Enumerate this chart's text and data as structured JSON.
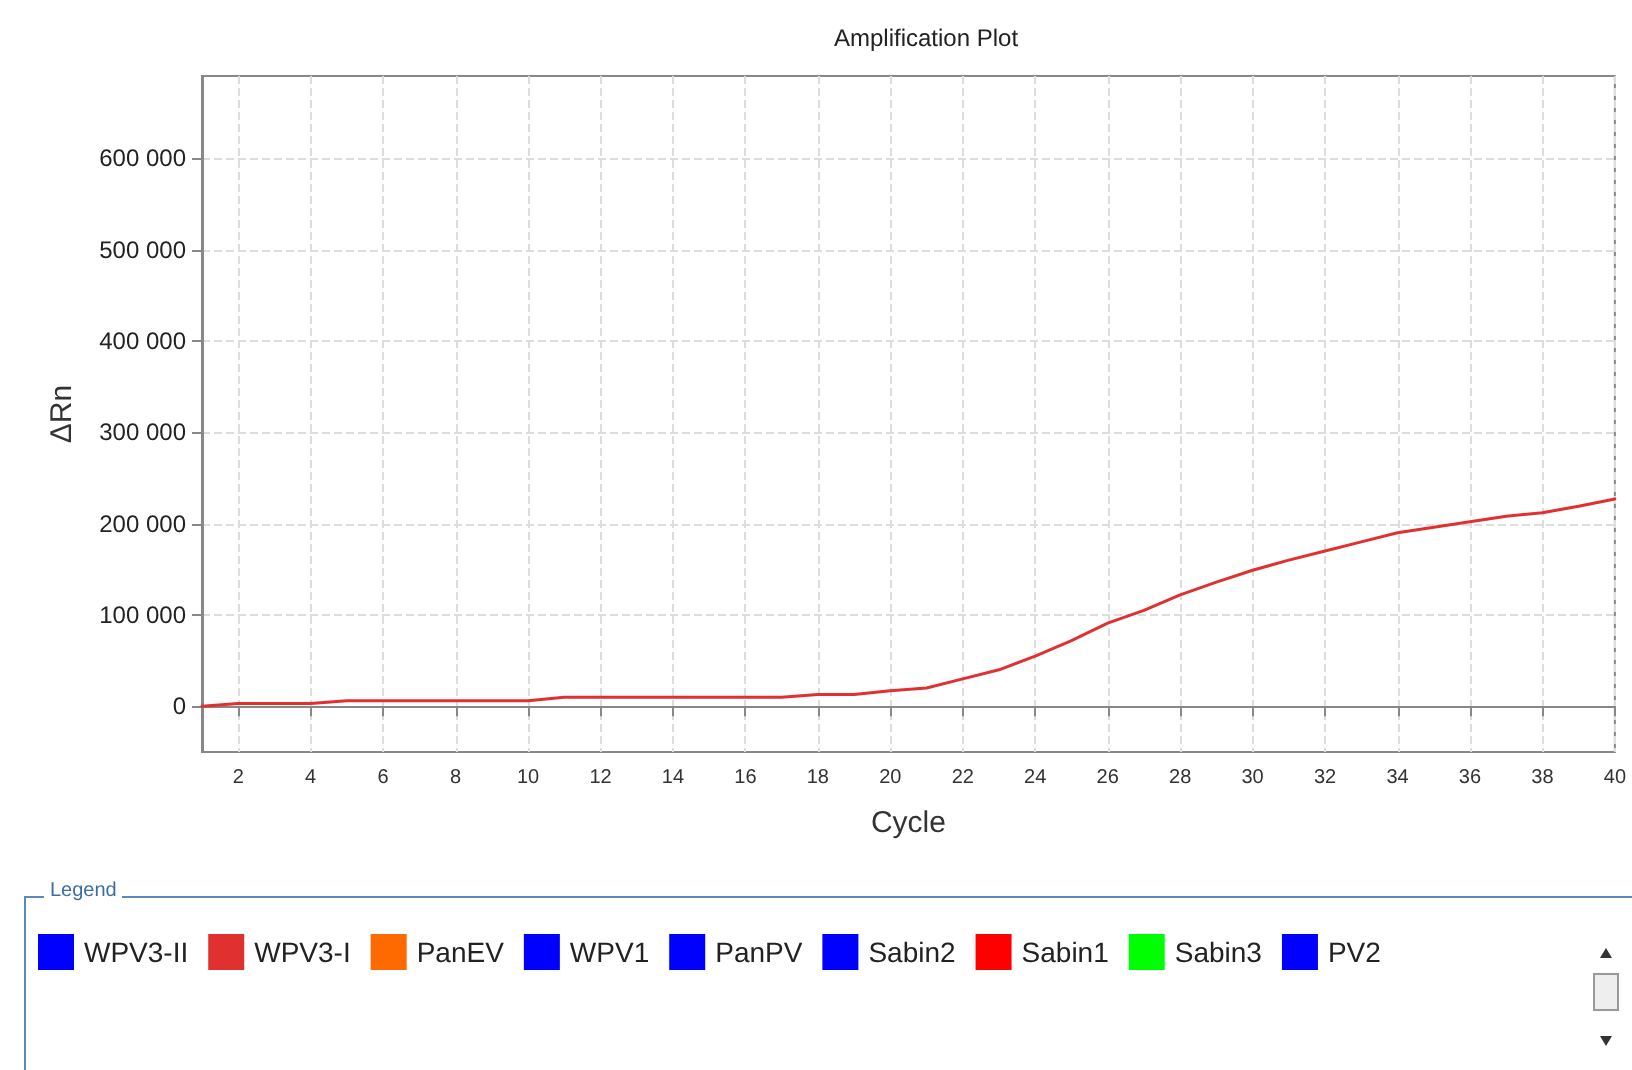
{
  "chart_data": {
    "type": "line",
    "title": "Amplification Plot",
    "xlabel": "Cycle",
    "ylabel": "ΔRn",
    "legend_title": "Legend",
    "x": [
      1,
      2,
      3,
      4,
      5,
      6,
      7,
      8,
      9,
      10,
      11,
      12,
      13,
      14,
      15,
      16,
      17,
      18,
      19,
      20,
      21,
      22,
      23,
      24,
      25,
      26,
      27,
      28,
      29,
      30,
      31,
      32,
      33,
      34,
      35,
      36,
      37,
      38,
      39,
      40
    ],
    "series": [
      {
        "name": "WPV3-II",
        "color": "#0000ff",
        "values": [
          null,
          null,
          null,
          null,
          null,
          null,
          null,
          null,
          null,
          null,
          null,
          null,
          null,
          null,
          null,
          null,
          null,
          null,
          null,
          null,
          null,
          null,
          null,
          null,
          null,
          null,
          null,
          null,
          null,
          null,
          null,
          null,
          null,
          null,
          null,
          null,
          null,
          null,
          null,
          null
        ]
      },
      {
        "name": "WPV3-I",
        "color": "#e03030",
        "values": [
          0,
          3000,
          3000,
          3000,
          6000,
          6000,
          6000,
          6000,
          6000,
          6000,
          10000,
          10000,
          10000,
          10000,
          10000,
          10000,
          10000,
          13000,
          13000,
          17000,
          20000,
          30000,
          40000,
          55000,
          72000,
          91000,
          105000,
          122000,
          136000,
          149000,
          160000,
          170000,
          180000,
          190000,
          196000,
          202000,
          208000,
          212000,
          219000,
          227000
        ]
      },
      {
        "name": "PanEV",
        "color": "#ff6a00",
        "values": [
          null,
          null,
          null,
          null,
          null,
          null,
          null,
          null,
          null,
          null,
          null,
          null,
          null,
          null,
          null,
          null,
          null,
          null,
          null,
          null,
          null,
          null,
          null,
          null,
          null,
          null,
          null,
          null,
          null,
          null,
          null,
          null,
          null,
          null,
          null,
          null,
          null,
          null,
          null,
          null
        ]
      },
      {
        "name": "WPV1",
        "color": "#0000ff",
        "values": [
          null,
          null,
          null,
          null,
          null,
          null,
          null,
          null,
          null,
          null,
          null,
          null,
          null,
          null,
          null,
          null,
          null,
          null,
          null,
          null,
          null,
          null,
          null,
          null,
          null,
          null,
          null,
          null,
          null,
          null,
          null,
          null,
          null,
          null,
          null,
          null,
          null,
          null,
          null,
          null
        ]
      },
      {
        "name": "PanPV",
        "color": "#0000ff",
        "values": [
          null,
          null,
          null,
          null,
          null,
          null,
          null,
          null,
          null,
          null,
          null,
          null,
          null,
          null,
          null,
          null,
          null,
          null,
          null,
          null,
          null,
          null,
          null,
          null,
          null,
          null,
          null,
          null,
          null,
          null,
          null,
          null,
          null,
          null,
          null,
          null,
          null,
          null,
          null,
          null
        ]
      },
      {
        "name": "Sabin2",
        "color": "#0000ff",
        "values": [
          null,
          null,
          null,
          null,
          null,
          null,
          null,
          null,
          null,
          null,
          null,
          null,
          null,
          null,
          null,
          null,
          null,
          null,
          null,
          null,
          null,
          null,
          null,
          null,
          null,
          null,
          null,
          null,
          null,
          null,
          null,
          null,
          null,
          null,
          null,
          null,
          null,
          null,
          null,
          null
        ]
      },
      {
        "name": "Sabin1",
        "color": "#ff0000",
        "values": [
          null,
          null,
          null,
          null,
          null,
          null,
          null,
          null,
          null,
          null,
          null,
          null,
          null,
          null,
          null,
          null,
          null,
          null,
          null,
          null,
          null,
          null,
          null,
          null,
          null,
          null,
          null,
          null,
          null,
          null,
          null,
          null,
          null,
          null,
          null,
          null,
          null,
          null,
          null,
          null
        ]
      },
      {
        "name": "Sabin3",
        "color": "#00ff00",
        "values": [
          null,
          null,
          null,
          null,
          null,
          null,
          null,
          null,
          null,
          null,
          null,
          null,
          null,
          null,
          null,
          null,
          null,
          null,
          null,
          null,
          null,
          null,
          null,
          null,
          null,
          null,
          null,
          null,
          null,
          null,
          null,
          null,
          null,
          null,
          null,
          null,
          null,
          null,
          null,
          null
        ]
      },
      {
        "name": "PV2",
        "color": "#0000ff",
        "values": [
          null,
          null,
          null,
          null,
          null,
          null,
          null,
          null,
          null,
          null,
          null,
          null,
          null,
          null,
          null,
          null,
          null,
          null,
          null,
          null,
          null,
          null,
          null,
          null,
          null,
          null,
          null,
          null,
          null,
          null,
          null,
          null,
          null,
          null,
          null,
          null,
          null,
          null,
          null,
          null
        ]
      }
    ],
    "xlim": [
      1,
      40
    ],
    "xticks": [
      2,
      4,
      6,
      8,
      10,
      12,
      14,
      16,
      18,
      20,
      22,
      24,
      26,
      28,
      30,
      32,
      34,
      36,
      38,
      40
    ],
    "ylim": [
      -50000,
      690000
    ],
    "yticks": [
      {
        "value": 0,
        "label": "0"
      },
      {
        "value": 100000,
        "label": "100 000"
      },
      {
        "value": 200000,
        "label": "200 000"
      },
      {
        "value": 300000,
        "label": "300 000"
      },
      {
        "value": 400000,
        "label": "400 000"
      },
      {
        "value": 500000,
        "label": "500 000"
      },
      {
        "value": 600000,
        "label": "600 000"
      }
    ],
    "grid": true,
    "legend": "bottom",
    "marker": "none",
    "line_style": "solid"
  }
}
